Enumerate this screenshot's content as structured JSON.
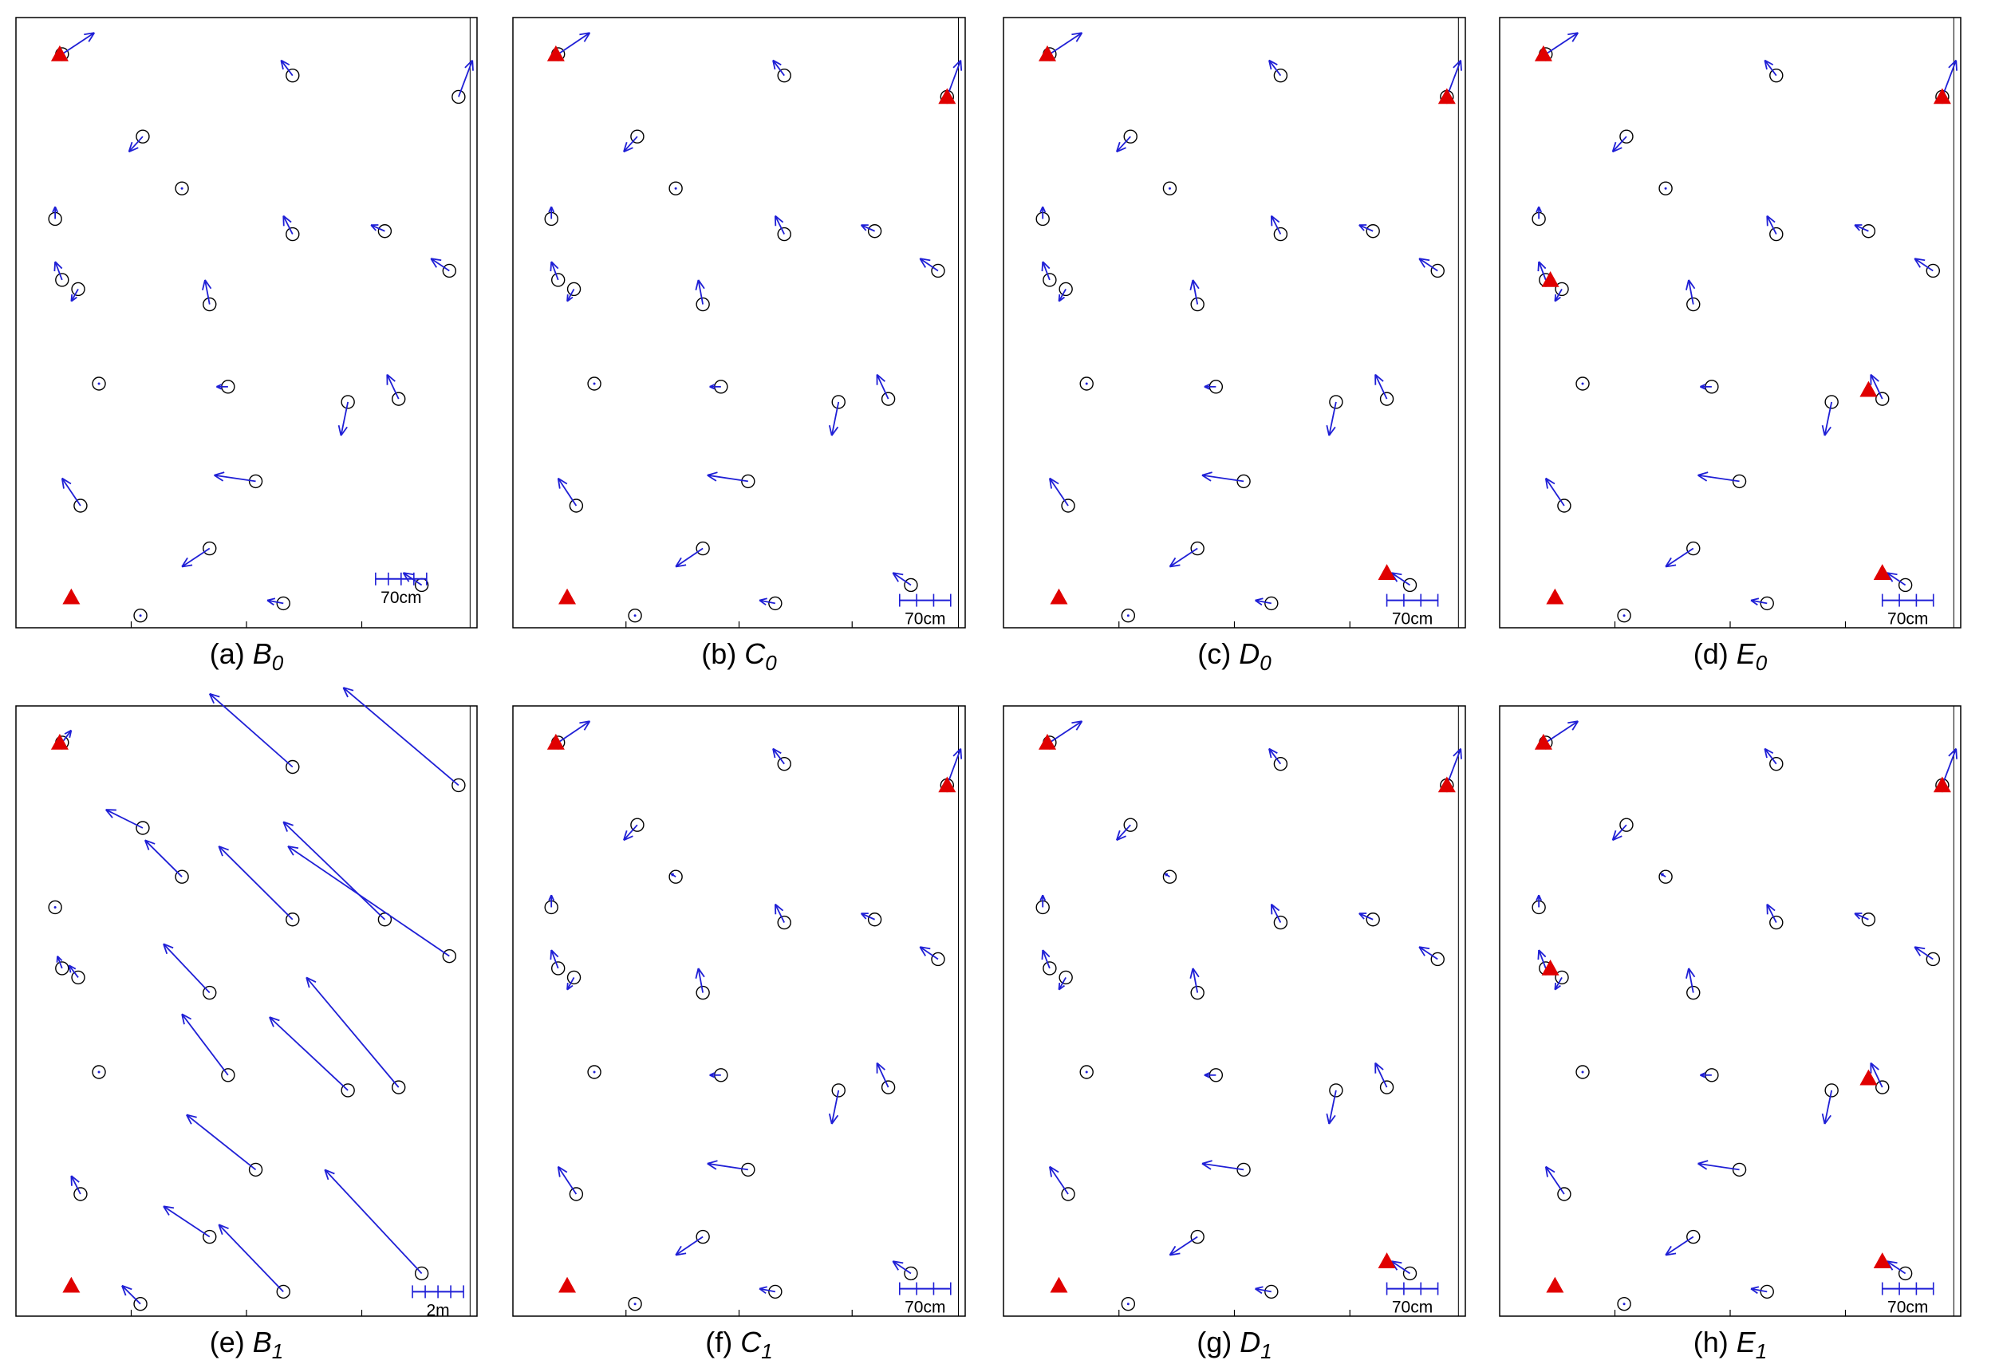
{
  "colors": {
    "frame": "#000000",
    "marker": "#000000",
    "arrow": "#1f1fd6",
    "triangle": "#e00000"
  },
  "panels": [
    {
      "id": "a",
      "caption_prefix": "(a)",
      "caption_letter": "B",
      "caption_sub": "0",
      "scale_label": "70cm",
      "scale_ticks": 5,
      "scale_anchor": [
        0.78,
        0.92
      ],
      "points": [
        [
          0.1,
          0.06,
          0.07,
          -0.035
        ],
        [
          0.6,
          0.095,
          -0.025,
          -0.025
        ],
        [
          0.96,
          0.13,
          0.03,
          -0.06
        ],
        [
          0.275,
          0.195,
          -0.03,
          0.025
        ],
        [
          0.36,
          0.28,
          0,
          0
        ],
        [
          0.085,
          0.33,
          0,
          -0.02
        ],
        [
          0.6,
          0.355,
          -0.02,
          -0.03
        ],
        [
          0.8,
          0.35,
          -0.03,
          -0.01
        ],
        [
          0.94,
          0.415,
          -0.04,
          -0.02
        ],
        [
          0.1,
          0.43,
          -0.015,
          -0.03
        ],
        [
          0.135,
          0.445,
          -0.015,
          0.02
        ],
        [
          0.42,
          0.47,
          -0.01,
          -0.04
        ],
        [
          0.18,
          0.6,
          0,
          0
        ],
        [
          0.46,
          0.605,
          -0.025,
          0
        ],
        [
          0.72,
          0.63,
          -0.015,
          0.055
        ],
        [
          0.83,
          0.625,
          -0.025,
          -0.04
        ],
        [
          0.52,
          0.76,
          -0.09,
          -0.01
        ],
        [
          0.14,
          0.8,
          -0.04,
          -0.045
        ],
        [
          0.42,
          0.87,
          -0.06,
          0.03
        ],
        [
          0.27,
          0.98,
          0,
          0
        ],
        [
          0.58,
          0.96,
          -0.035,
          -0.005
        ],
        [
          0.88,
          0.93,
          -0.04,
          -0.02
        ]
      ],
      "triangles": [
        [
          0.095,
          0.06
        ],
        [
          0.12,
          0.95
        ]
      ]
    },
    {
      "id": "b",
      "caption_prefix": "(b)",
      "caption_letter": "C",
      "caption_sub": "0",
      "scale_label": "70cm",
      "scale_ticks": 4,
      "scale_anchor": [
        0.855,
        0.955
      ],
      "points": [
        [
          0.1,
          0.06,
          0.07,
          -0.035
        ],
        [
          0.6,
          0.095,
          -0.025,
          -0.025
        ],
        [
          0.96,
          0.13,
          0.03,
          -0.06
        ],
        [
          0.275,
          0.195,
          -0.03,
          0.025
        ],
        [
          0.36,
          0.28,
          0,
          0
        ],
        [
          0.085,
          0.33,
          0,
          -0.02
        ],
        [
          0.6,
          0.355,
          -0.02,
          -0.03
        ],
        [
          0.8,
          0.35,
          -0.03,
          -0.01
        ],
        [
          0.94,
          0.415,
          -0.04,
          -0.02
        ],
        [
          0.1,
          0.43,
          -0.015,
          -0.03
        ],
        [
          0.135,
          0.445,
          -0.015,
          0.02
        ],
        [
          0.42,
          0.47,
          -0.01,
          -0.04
        ],
        [
          0.18,
          0.6,
          0,
          0
        ],
        [
          0.46,
          0.605,
          -0.025,
          0
        ],
        [
          0.72,
          0.63,
          -0.015,
          0.055
        ],
        [
          0.83,
          0.625,
          -0.025,
          -0.04
        ],
        [
          0.52,
          0.76,
          -0.09,
          -0.01
        ],
        [
          0.14,
          0.8,
          -0.04,
          -0.045
        ],
        [
          0.42,
          0.87,
          -0.06,
          0.03
        ],
        [
          0.27,
          0.98,
          0,
          0
        ],
        [
          0.58,
          0.96,
          -0.035,
          -0.005
        ],
        [
          0.88,
          0.93,
          -0.04,
          -0.02
        ]
      ],
      "triangles": [
        [
          0.095,
          0.06
        ],
        [
          0.96,
          0.13
        ],
        [
          0.12,
          0.95
        ]
      ]
    },
    {
      "id": "c",
      "caption_prefix": "(c)",
      "caption_letter": "D",
      "caption_sub": "0",
      "scale_label": "70cm",
      "scale_ticks": 4,
      "scale_anchor": [
        0.83,
        0.955
      ],
      "points": [
        [
          0.1,
          0.06,
          0.07,
          -0.035
        ],
        [
          0.6,
          0.095,
          -0.025,
          -0.025
        ],
        [
          0.96,
          0.13,
          0.03,
          -0.06
        ],
        [
          0.275,
          0.195,
          -0.03,
          0.025
        ],
        [
          0.36,
          0.28,
          0,
          0
        ],
        [
          0.085,
          0.33,
          0,
          -0.02
        ],
        [
          0.6,
          0.355,
          -0.02,
          -0.03
        ],
        [
          0.8,
          0.35,
          -0.03,
          -0.01
        ],
        [
          0.94,
          0.415,
          -0.04,
          -0.02
        ],
        [
          0.1,
          0.43,
          -0.015,
          -0.03
        ],
        [
          0.135,
          0.445,
          -0.015,
          0.02
        ],
        [
          0.42,
          0.47,
          -0.01,
          -0.04
        ],
        [
          0.18,
          0.6,
          0,
          0
        ],
        [
          0.46,
          0.605,
          -0.025,
          0
        ],
        [
          0.72,
          0.63,
          -0.015,
          0.055
        ],
        [
          0.83,
          0.625,
          -0.025,
          -0.04
        ],
        [
          0.52,
          0.76,
          -0.09,
          -0.01
        ],
        [
          0.14,
          0.8,
          -0.04,
          -0.045
        ],
        [
          0.42,
          0.87,
          -0.06,
          0.03
        ],
        [
          0.27,
          0.98,
          0,
          0
        ],
        [
          0.58,
          0.96,
          -0.035,
          -0.005
        ],
        [
          0.88,
          0.93,
          -0.04,
          -0.02
        ]
      ],
      "triangles": [
        [
          0.095,
          0.06
        ],
        [
          0.96,
          0.13
        ],
        [
          0.12,
          0.95
        ],
        [
          0.83,
          0.91
        ]
      ]
    },
    {
      "id": "d",
      "caption_prefix": "(d)",
      "caption_letter": "E",
      "caption_sub": "0",
      "scale_label": "70cm",
      "scale_ticks": 4,
      "scale_anchor": [
        0.83,
        0.955
      ],
      "points": [
        [
          0.1,
          0.06,
          0.07,
          -0.035
        ],
        [
          0.6,
          0.095,
          -0.025,
          -0.025
        ],
        [
          0.96,
          0.13,
          0.03,
          -0.06
        ],
        [
          0.275,
          0.195,
          -0.03,
          0.025
        ],
        [
          0.36,
          0.28,
          0,
          0
        ],
        [
          0.085,
          0.33,
          0,
          -0.02
        ],
        [
          0.6,
          0.355,
          -0.02,
          -0.03
        ],
        [
          0.8,
          0.35,
          -0.03,
          -0.01
        ],
        [
          0.94,
          0.415,
          -0.04,
          -0.02
        ],
        [
          0.1,
          0.43,
          -0.015,
          -0.03
        ],
        [
          0.135,
          0.445,
          -0.015,
          0.02
        ],
        [
          0.42,
          0.47,
          -0.01,
          -0.04
        ],
        [
          0.18,
          0.6,
          0,
          0
        ],
        [
          0.46,
          0.605,
          -0.025,
          0
        ],
        [
          0.72,
          0.63,
          -0.015,
          0.055
        ],
        [
          0.83,
          0.625,
          -0.025,
          -0.04
        ],
        [
          0.52,
          0.76,
          -0.09,
          -0.01
        ],
        [
          0.14,
          0.8,
          -0.04,
          -0.045
        ],
        [
          0.42,
          0.87,
          -0.06,
          0.03
        ],
        [
          0.27,
          0.98,
          0,
          0
        ],
        [
          0.58,
          0.96,
          -0.035,
          -0.005
        ],
        [
          0.88,
          0.93,
          -0.04,
          -0.02
        ]
      ],
      "triangles": [
        [
          0.095,
          0.06
        ],
        [
          0.96,
          0.13
        ],
        [
          0.12,
          0.95
        ],
        [
          0.83,
          0.91
        ],
        [
          0.11,
          0.43
        ],
        [
          0.8,
          0.61
        ]
      ]
    },
    {
      "id": "e",
      "caption_prefix": "(e)",
      "caption_letter": "B",
      "caption_sub": "1",
      "scale_label": "2m",
      "scale_ticks": 5,
      "scale_anchor": [
        0.86,
        0.96
      ],
      "points": [
        [
          0.1,
          0.06,
          0.02,
          -0.02
        ],
        [
          0.6,
          0.1,
          -0.18,
          -0.12
        ],
        [
          0.96,
          0.13,
          -0.25,
          -0.16
        ],
        [
          0.275,
          0.2,
          -0.08,
          -0.03
        ],
        [
          0.36,
          0.28,
          -0.08,
          -0.06
        ],
        [
          0.085,
          0.33,
          0,
          0
        ],
        [
          0.6,
          0.35,
          -0.16,
          -0.12
        ],
        [
          0.8,
          0.35,
          -0.22,
          -0.16
        ],
        [
          0.94,
          0.41,
          -0.35,
          -0.18
        ],
        [
          0.1,
          0.43,
          -0.01,
          -0.02
        ],
        [
          0.135,
          0.445,
          -0.02,
          -0.02
        ],
        [
          0.42,
          0.47,
          -0.1,
          -0.08
        ],
        [
          0.18,
          0.6,
          0,
          0
        ],
        [
          0.46,
          0.605,
          -0.1,
          -0.1
        ],
        [
          0.72,
          0.63,
          -0.17,
          -0.12
        ],
        [
          0.83,
          0.625,
          -0.2,
          -0.18
        ],
        [
          0.52,
          0.76,
          -0.15,
          -0.09
        ],
        [
          0.14,
          0.8,
          -0.02,
          -0.03
        ],
        [
          0.42,
          0.87,
          -0.1,
          -0.05
        ],
        [
          0.27,
          0.98,
          -0.04,
          -0.03
        ],
        [
          0.58,
          0.96,
          -0.14,
          -0.11
        ],
        [
          0.88,
          0.93,
          -0.21,
          -0.17
        ]
      ],
      "triangles": [
        [
          0.095,
          0.06
        ],
        [
          0.12,
          0.95
        ]
      ]
    },
    {
      "id": "f",
      "caption_prefix": "(f)",
      "caption_letter": "C",
      "caption_sub": "1",
      "scale_label": "70cm",
      "scale_ticks": 4,
      "scale_anchor": [
        0.855,
        0.955
      ],
      "points": [
        [
          0.1,
          0.06,
          0.07,
          -0.035
        ],
        [
          0.6,
          0.095,
          -0.025,
          -0.025
        ],
        [
          0.96,
          0.13,
          0.03,
          -0.06
        ],
        [
          0.275,
          0.195,
          -0.03,
          0.025
        ],
        [
          0.36,
          0.28,
          -0.01,
          -0.005
        ],
        [
          0.085,
          0.33,
          0,
          -0.02
        ],
        [
          0.6,
          0.355,
          -0.02,
          -0.03
        ],
        [
          0.8,
          0.35,
          -0.03,
          -0.01
        ],
        [
          0.94,
          0.415,
          -0.04,
          -0.02
        ],
        [
          0.1,
          0.43,
          -0.015,
          -0.03
        ],
        [
          0.135,
          0.445,
          -0.015,
          0.02
        ],
        [
          0.42,
          0.47,
          -0.01,
          -0.04
        ],
        [
          0.18,
          0.6,
          0,
          0
        ],
        [
          0.46,
          0.605,
          -0.025,
          0
        ],
        [
          0.72,
          0.63,
          -0.015,
          0.055
        ],
        [
          0.83,
          0.625,
          -0.025,
          -0.04
        ],
        [
          0.52,
          0.76,
          -0.09,
          -0.01
        ],
        [
          0.14,
          0.8,
          -0.04,
          -0.045
        ],
        [
          0.42,
          0.87,
          -0.06,
          0.03
        ],
        [
          0.27,
          0.98,
          0,
          0
        ],
        [
          0.58,
          0.96,
          -0.035,
          -0.005
        ],
        [
          0.88,
          0.93,
          -0.04,
          -0.02
        ]
      ],
      "triangles": [
        [
          0.095,
          0.06
        ],
        [
          0.96,
          0.13
        ],
        [
          0.12,
          0.95
        ]
      ]
    },
    {
      "id": "g",
      "caption_prefix": "(g)",
      "caption_letter": "D",
      "caption_sub": "1",
      "scale_label": "70cm",
      "scale_ticks": 4,
      "scale_anchor": [
        0.83,
        0.955
      ],
      "points": [
        [
          0.1,
          0.06,
          0.07,
          -0.035
        ],
        [
          0.6,
          0.095,
          -0.025,
          -0.025
        ],
        [
          0.96,
          0.13,
          0.03,
          -0.06
        ],
        [
          0.275,
          0.195,
          -0.03,
          0.025
        ],
        [
          0.36,
          0.28,
          -0.01,
          -0.005
        ],
        [
          0.085,
          0.33,
          0,
          -0.02
        ],
        [
          0.6,
          0.355,
          -0.02,
          -0.03
        ],
        [
          0.8,
          0.35,
          -0.03,
          -0.01
        ],
        [
          0.94,
          0.415,
          -0.04,
          -0.02
        ],
        [
          0.1,
          0.43,
          -0.015,
          -0.03
        ],
        [
          0.135,
          0.445,
          -0.015,
          0.02
        ],
        [
          0.42,
          0.47,
          -0.01,
          -0.04
        ],
        [
          0.18,
          0.6,
          0,
          0
        ],
        [
          0.46,
          0.605,
          -0.025,
          0
        ],
        [
          0.72,
          0.63,
          -0.015,
          0.055
        ],
        [
          0.83,
          0.625,
          -0.025,
          -0.04
        ],
        [
          0.52,
          0.76,
          -0.09,
          -0.01
        ],
        [
          0.14,
          0.8,
          -0.04,
          -0.045
        ],
        [
          0.42,
          0.87,
          -0.06,
          0.03
        ],
        [
          0.27,
          0.98,
          0,
          0
        ],
        [
          0.58,
          0.96,
          -0.035,
          -0.005
        ],
        [
          0.88,
          0.93,
          -0.04,
          -0.02
        ]
      ],
      "triangles": [
        [
          0.095,
          0.06
        ],
        [
          0.96,
          0.13
        ],
        [
          0.12,
          0.95
        ],
        [
          0.83,
          0.91
        ]
      ]
    },
    {
      "id": "h",
      "caption_prefix": "(h)",
      "caption_letter": "E",
      "caption_sub": "1",
      "scale_label": "70cm",
      "scale_ticks": 4,
      "scale_anchor": [
        0.83,
        0.955
      ],
      "points": [
        [
          0.1,
          0.06,
          0.07,
          -0.035
        ],
        [
          0.6,
          0.095,
          -0.025,
          -0.025
        ],
        [
          0.96,
          0.13,
          0.03,
          -0.06
        ],
        [
          0.275,
          0.195,
          -0.03,
          0.025
        ],
        [
          0.36,
          0.28,
          -0.01,
          -0.005
        ],
        [
          0.085,
          0.33,
          0,
          -0.02
        ],
        [
          0.6,
          0.355,
          -0.02,
          -0.03
        ],
        [
          0.8,
          0.35,
          -0.03,
          -0.01
        ],
        [
          0.94,
          0.415,
          -0.04,
          -0.02
        ],
        [
          0.1,
          0.43,
          -0.015,
          -0.03
        ],
        [
          0.135,
          0.445,
          -0.015,
          0.02
        ],
        [
          0.42,
          0.47,
          -0.01,
          -0.04
        ],
        [
          0.18,
          0.6,
          0,
          0
        ],
        [
          0.46,
          0.605,
          -0.025,
          0
        ],
        [
          0.72,
          0.63,
          -0.015,
          0.055
        ],
        [
          0.83,
          0.625,
          -0.025,
          -0.04
        ],
        [
          0.52,
          0.76,
          -0.09,
          -0.01
        ],
        [
          0.14,
          0.8,
          -0.04,
          -0.045
        ],
        [
          0.42,
          0.87,
          -0.06,
          0.03
        ],
        [
          0.27,
          0.98,
          0,
          0
        ],
        [
          0.58,
          0.96,
          -0.035,
          -0.005
        ],
        [
          0.88,
          0.93,
          -0.04,
          -0.02
        ]
      ],
      "triangles": [
        [
          0.095,
          0.06
        ],
        [
          0.96,
          0.13
        ],
        [
          0.12,
          0.95
        ],
        [
          0.83,
          0.91
        ],
        [
          0.11,
          0.43
        ],
        [
          0.8,
          0.61
        ]
      ]
    }
  ]
}
